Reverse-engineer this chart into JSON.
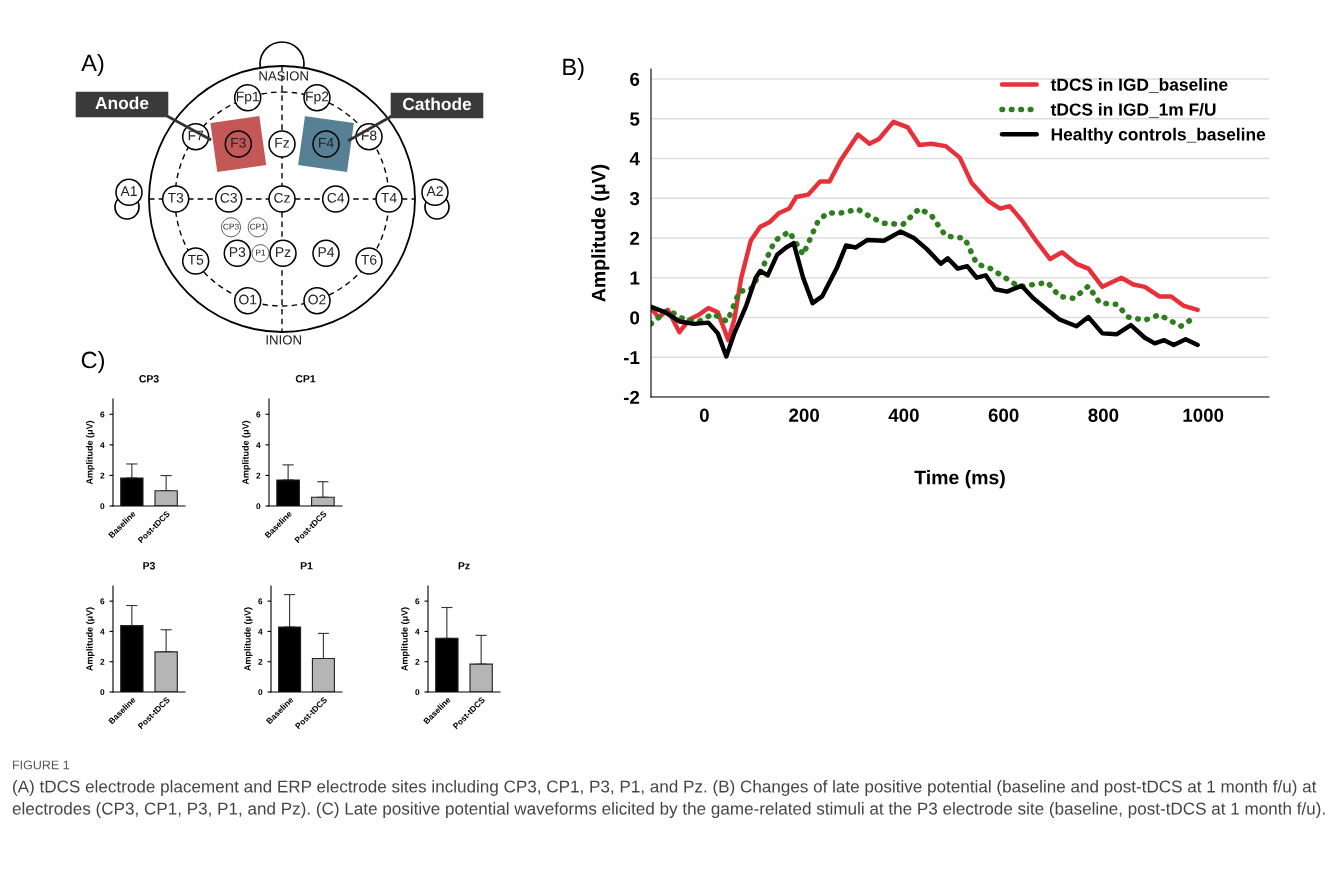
{
  "chart_data": [
    {
      "type": "other",
      "title": "A)",
      "colors": [
        "#c0504d",
        "#4f7a8f"
      ],
      "annotations": [
        "Fp1",
        "Fp2",
        "F7",
        "F3",
        "Fz",
        "F4",
        "F8",
        "A1",
        "T3",
        "C3",
        "Cz",
        "C4",
        "T4",
        "A2",
        "CP3",
        "CP1",
        "P3",
        "P1",
        "Pz",
        "P4",
        "T5",
        "T6",
        "O1",
        "O2",
        "NASION",
        "INION",
        "Anode",
        "Cathode",
        "FIGURE 1",
        "(A) tDCS electrode placement and ERP electrode sites including CP3, CP1, P3, P1, and Pz. (B) Changes of late positive potential (baseline and post-tDCS at 1 month f/u) at electrodes (CP3, CP1, P3, P1, and Pz). (C) Late positive potential waveforms elicited by the game-related stimuli at the P3 electrode site (baseline, post-tDCS at 1 month f/u)."
      ]
    },
    {
      "type": "line",
      "title": "B)",
      "xlabel": "Time (ms)",
      "ylabel": "Amplitude (μV)",
      "xlim": [
        -107,
        1132
      ],
      "ylim": [
        -2,
        6.25
      ],
      "xticks": [
        0,
        200,
        400,
        600,
        800,
        1000
      ],
      "yticks": [
        -2,
        -1,
        0,
        1,
        2,
        3,
        4,
        5,
        6
      ],
      "grid": "y",
      "legend": "top right",
      "marker": "none",
      "series": [
        {
          "name": "tDCS in IGD_baseline",
          "color": "#e8303a",
          "line_style": "solid",
          "x": [
            -107,
            -92,
            -73,
            -50,
            -30,
            -11,
            8,
            27,
            48,
            60,
            74,
            93,
            112,
            131,
            150,
            170,
            184,
            208,
            232,
            251,
            274,
            308,
            331,
            350,
            379,
            408,
            431,
            455,
            484,
            512,
            536,
            570,
            593,
            612,
            636,
            665,
            693,
            717,
            746,
            770,
            798,
            836,
            860,
            883,
            912,
            936,
            960,
            989
          ],
          "values": [
            0.24,
            0.0,
            0.19,
            -0.37,
            -0.05,
            0.07,
            0.24,
            0.13,
            -0.57,
            -0.05,
            1.0,
            1.93,
            2.28,
            2.4,
            2.63,
            2.74,
            3.03,
            3.09,
            3.42,
            3.42,
            3.97,
            4.6,
            4.37,
            4.49,
            4.92,
            4.78,
            4.34,
            4.37,
            4.31,
            4.02,
            3.38,
            2.92,
            2.74,
            2.8,
            2.45,
            1.93,
            1.47,
            1.64,
            1.35,
            1.23,
            0.77,
            1.0,
            0.83,
            0.77,
            0.53,
            0.53,
            0.3,
            0.19
          ]
        },
        {
          "name": "tDCS in IGD_1m F/U",
          "color": "#2e7d1e",
          "line_style": "dotted",
          "x": [
            -107,
            -73,
            -40,
            -11,
            17,
            46,
            70,
            93,
            112,
            141,
            170,
            198,
            227,
            246,
            274,
            308,
            336,
            360,
            398,
            431,
            455,
            484,
            522,
            546,
            574,
            603,
            631,
            660,
            688,
            712,
            741,
            770,
            793,
            827,
            850,
            883,
            912,
            955,
            984
          ],
          "values": [
            -0.16,
            0.19,
            -0.05,
            -0.1,
            0.09,
            -0.1,
            0.65,
            0.71,
            1.12,
            1.93,
            2.16,
            1.58,
            2.4,
            2.63,
            2.63,
            2.72,
            2.51,
            2.37,
            2.34,
            2.74,
            2.57,
            2.05,
            1.99,
            1.35,
            1.23,
            1.0,
            0.77,
            0.83,
            0.88,
            0.53,
            0.48,
            0.79,
            0.36,
            0.33,
            0.01,
            -0.07,
            0.07,
            -0.22,
            0.01
          ]
        },
        {
          "name": "Healthy controls_baseline",
          "color": "#000000",
          "line_style": "solid",
          "x": [
            -107,
            -78,
            -50,
            -21,
            8,
            27,
            44,
            60,
            84,
            103,
            112,
            127,
            146,
            164,
            179,
            198,
            217,
            236,
            265,
            284,
            303,
            327,
            360,
            393,
            421,
            446,
            474,
            488,
            508,
            527,
            546,
            564,
            583,
            607,
            636,
            660,
            688,
            712,
            746,
            770,
            798,
            827,
            855,
            883,
            903,
            922,
            941,
            965,
            989
          ],
          "values": [
            0.27,
            0.13,
            -0.1,
            -0.16,
            -0.13,
            -0.4,
            -0.98,
            -0.4,
            0.3,
            1.0,
            1.17,
            1.06,
            1.58,
            1.76,
            1.87,
            1.0,
            0.36,
            0.53,
            1.23,
            1.81,
            1.76,
            1.95,
            1.93,
            2.16,
            1.99,
            1.72,
            1.35,
            1.49,
            1.23,
            1.29,
            1.0,
            1.06,
            0.71,
            0.65,
            0.8,
            0.48,
            0.19,
            -0.05,
            -0.22,
            0.01,
            -0.4,
            -0.42,
            -0.19,
            -0.51,
            -0.65,
            -0.57,
            -0.69,
            -0.55,
            -0.69
          ]
        }
      ]
    },
    {
      "type": "bar",
      "title": "CP3",
      "annotations": [
        "C)"
      ],
      "ylabel": "Amplitude (μV)",
      "categories": [
        "Baseline",
        "Post-tDCS"
      ],
      "values": [
        1.83,
        1.0
      ],
      "errors": [
        [
          1.83,
          2.75
        ],
        [
          1.0,
          1.99
        ]
      ],
      "colors": [
        "#000000",
        "#b5b5b5"
      ],
      "ylim": [
        0,
        7
      ],
      "yticks": [
        0,
        2,
        4,
        6
      ]
    },
    {
      "type": "bar",
      "title": "CP1",
      "ylabel": "Amplitude (μV)",
      "categories": [
        "Baseline",
        "Post-tDCS"
      ],
      "values": [
        1.7,
        0.57
      ],
      "errors": [
        [
          1.7,
          2.69
        ],
        [
          0.57,
          1.59
        ]
      ],
      "colors": [
        "#000000",
        "#b5b5b5"
      ],
      "ylim": [
        0,
        7
      ],
      "yticks": [
        0,
        2,
        4,
        6
      ]
    },
    {
      "type": "bar",
      "title": "P3",
      "ylabel": "Amplitude (μV)",
      "categories": [
        "Baseline",
        "Post-tDCS"
      ],
      "values": [
        4.38,
        2.65
      ],
      "errors": [
        [
          4.38,
          5.71
        ],
        [
          2.65,
          4.11
        ]
      ],
      "colors": [
        "#000000",
        "#b5b5b5"
      ],
      "ylim": [
        0,
        7
      ],
      "yticks": [
        0,
        2,
        4,
        6
      ]
    },
    {
      "type": "bar",
      "title": "P1",
      "ylabel": "Amplitude (μV)",
      "categories": [
        "Baseline",
        "Post-tDCS"
      ],
      "values": [
        4.29,
        2.21
      ],
      "errors": [
        [
          4.29,
          6.43
        ],
        [
          2.21,
          3.87
        ]
      ],
      "colors": [
        "#000000",
        "#b5b5b5"
      ],
      "ylim": [
        0,
        7
      ],
      "yticks": [
        0,
        2,
        4,
        6
      ]
    },
    {
      "type": "bar",
      "title": "Pz",
      "ylabel": "Amplitude (μV)",
      "categories": [
        "Baseline",
        "Post-tDCS"
      ],
      "values": [
        3.54,
        1.84
      ],
      "errors": [
        [
          3.54,
          5.58
        ],
        [
          1.84,
          3.74
        ]
      ],
      "colors": [
        "#000000",
        "#b5b5b5"
      ],
      "ylim": [
        0,
        7
      ],
      "yticks": [
        0,
        2,
        4,
        6
      ]
    }
  ]
}
